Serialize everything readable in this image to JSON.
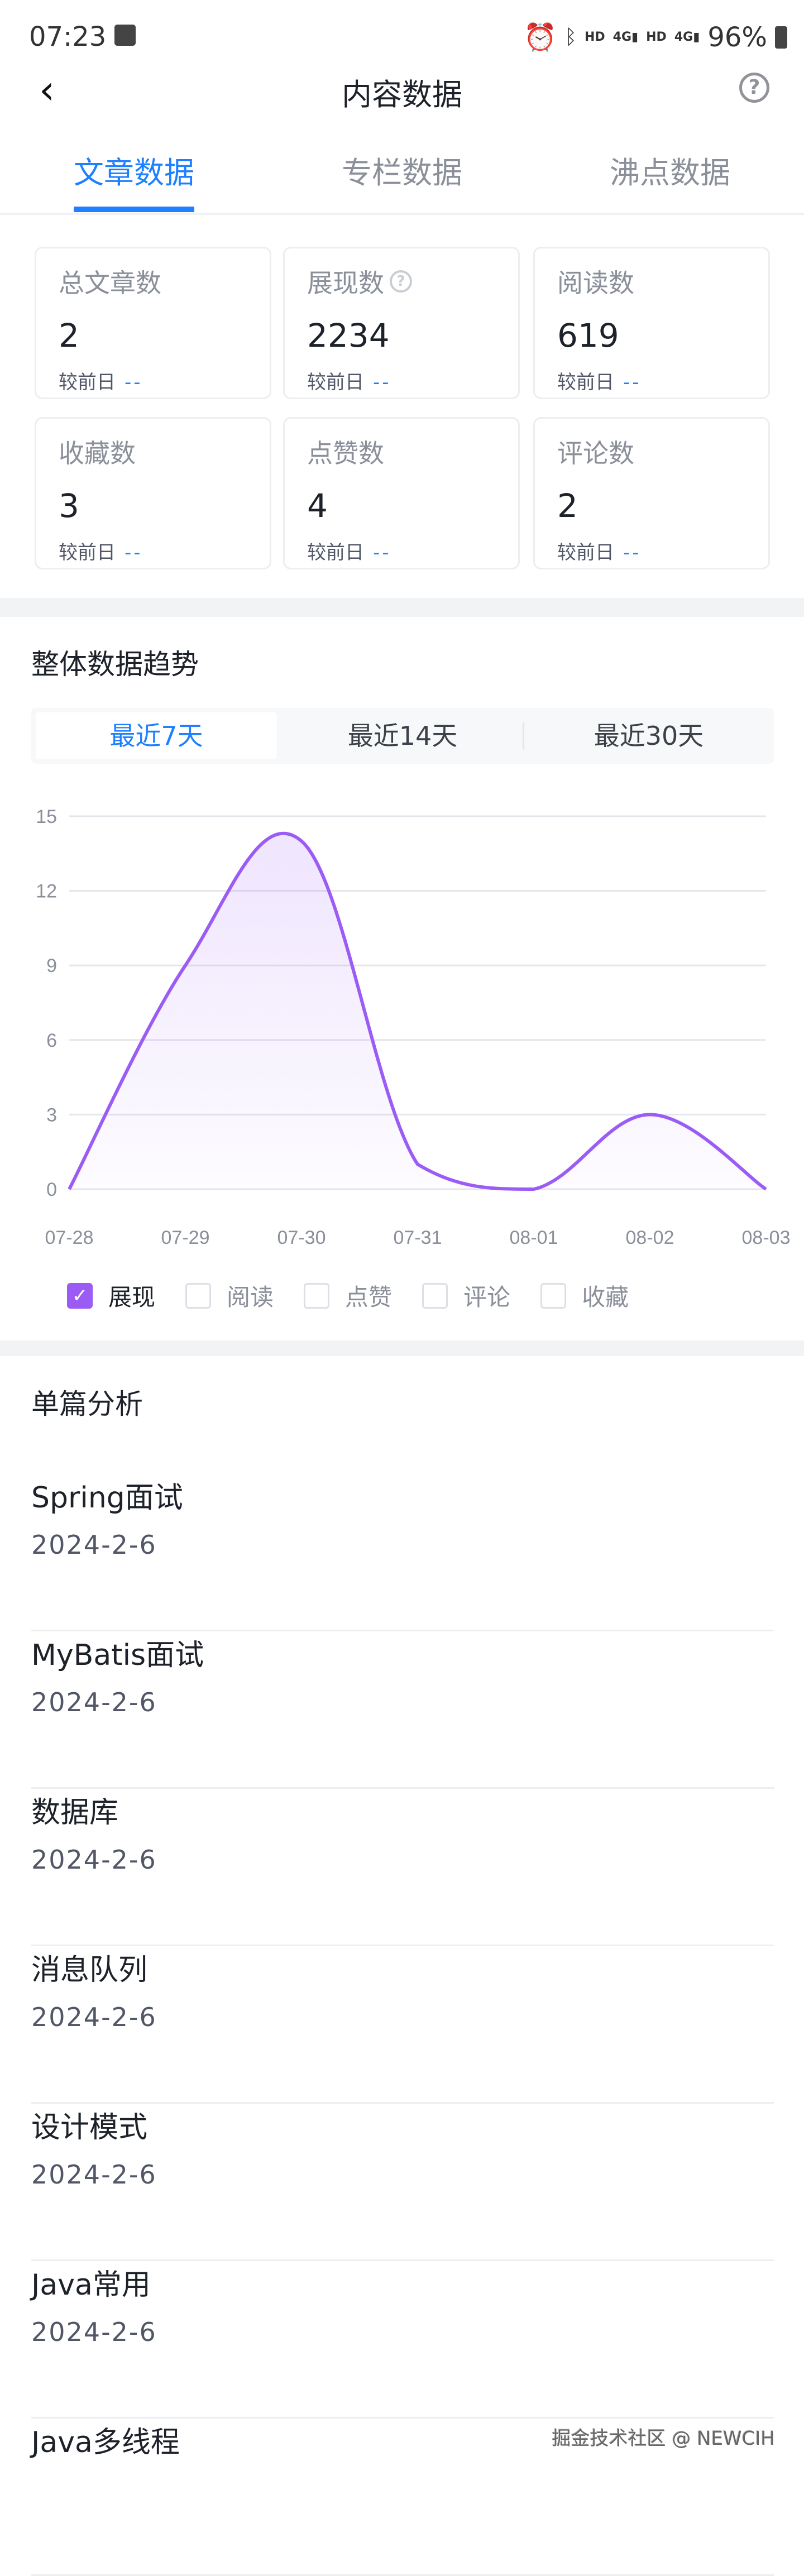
{
  "status_bar": {
    "time": "07:23",
    "battery": "96%",
    "indicators": [
      "alarm-icon",
      "bluetooth-icon",
      "HD",
      "4G",
      "HD",
      "4G"
    ]
  },
  "header": {
    "title": "内容数据",
    "back_icon": "chevron-left-icon",
    "help_icon": "?"
  },
  "tabs": [
    {
      "label": "文章数据",
      "active": true
    },
    {
      "label": "专栏数据"
    },
    {
      "label": "沸点数据"
    }
  ],
  "stats": [
    {
      "label": "总文章数",
      "value": "2",
      "compare_label": "较前日",
      "compare_value": "--"
    },
    {
      "label": "展现数",
      "value": "2234",
      "compare_label": "较前日",
      "compare_value": "--",
      "help": "?"
    },
    {
      "label": "阅读数",
      "value": "619",
      "compare_label": "较前日",
      "compare_value": "--"
    },
    {
      "label": "收藏数",
      "value": "3",
      "compare_label": "较前日",
      "compare_value": "--"
    },
    {
      "label": "点赞数",
      "value": "4",
      "compare_label": "较前日",
      "compare_value": "--"
    },
    {
      "label": "评论数",
      "value": "2",
      "compare_label": "较前日",
      "compare_value": "--"
    }
  ],
  "trend": {
    "title": "整体数据趋势",
    "ranges": [
      {
        "label": "最近7天",
        "active": true
      },
      {
        "label": "最近14天"
      },
      {
        "label": "最近30天"
      }
    ],
    "legend": [
      {
        "label": "展现",
        "checked": true
      },
      {
        "label": "阅读",
        "checked": false
      },
      {
        "label": "点赞",
        "checked": false
      },
      {
        "label": "评论",
        "checked": false
      },
      {
        "label": "收藏",
        "checked": false
      }
    ]
  },
  "chart_data": {
    "type": "area",
    "categories": [
      "07-28",
      "07-29",
      "07-30",
      "07-31",
      "08-01",
      "08-02",
      "08-03"
    ],
    "series": [
      {
        "name": "展现",
        "values": [
          0,
          9,
          14,
          1,
          0,
          3,
          0
        ],
        "color": "#9b5cf6"
      }
    ],
    "yticks": [
      0,
      3,
      6,
      9,
      12,
      15
    ],
    "ylim": [
      0,
      15
    ],
    "grid": true,
    "legend_placement": "bottom"
  },
  "articles": {
    "title": "单篇分析",
    "items": [
      {
        "title": "Spring面试",
        "date": "2024-2-6"
      },
      {
        "title": "MyBatis面试",
        "date": "2024-2-6"
      },
      {
        "title": "数据库",
        "date": "2024-2-6"
      },
      {
        "title": "消息队列",
        "date": "2024-2-6"
      },
      {
        "title": "设计模式",
        "date": "2024-2-6"
      },
      {
        "title": "Java常用",
        "date": "2024-2-6"
      },
      {
        "title": "Java多线程",
        "date": ""
      }
    ]
  },
  "watermark": "掘金技术社区 @ NEWCIH",
  "colors": {
    "accent": "#1e80ff",
    "series": "#9b5cf6"
  }
}
